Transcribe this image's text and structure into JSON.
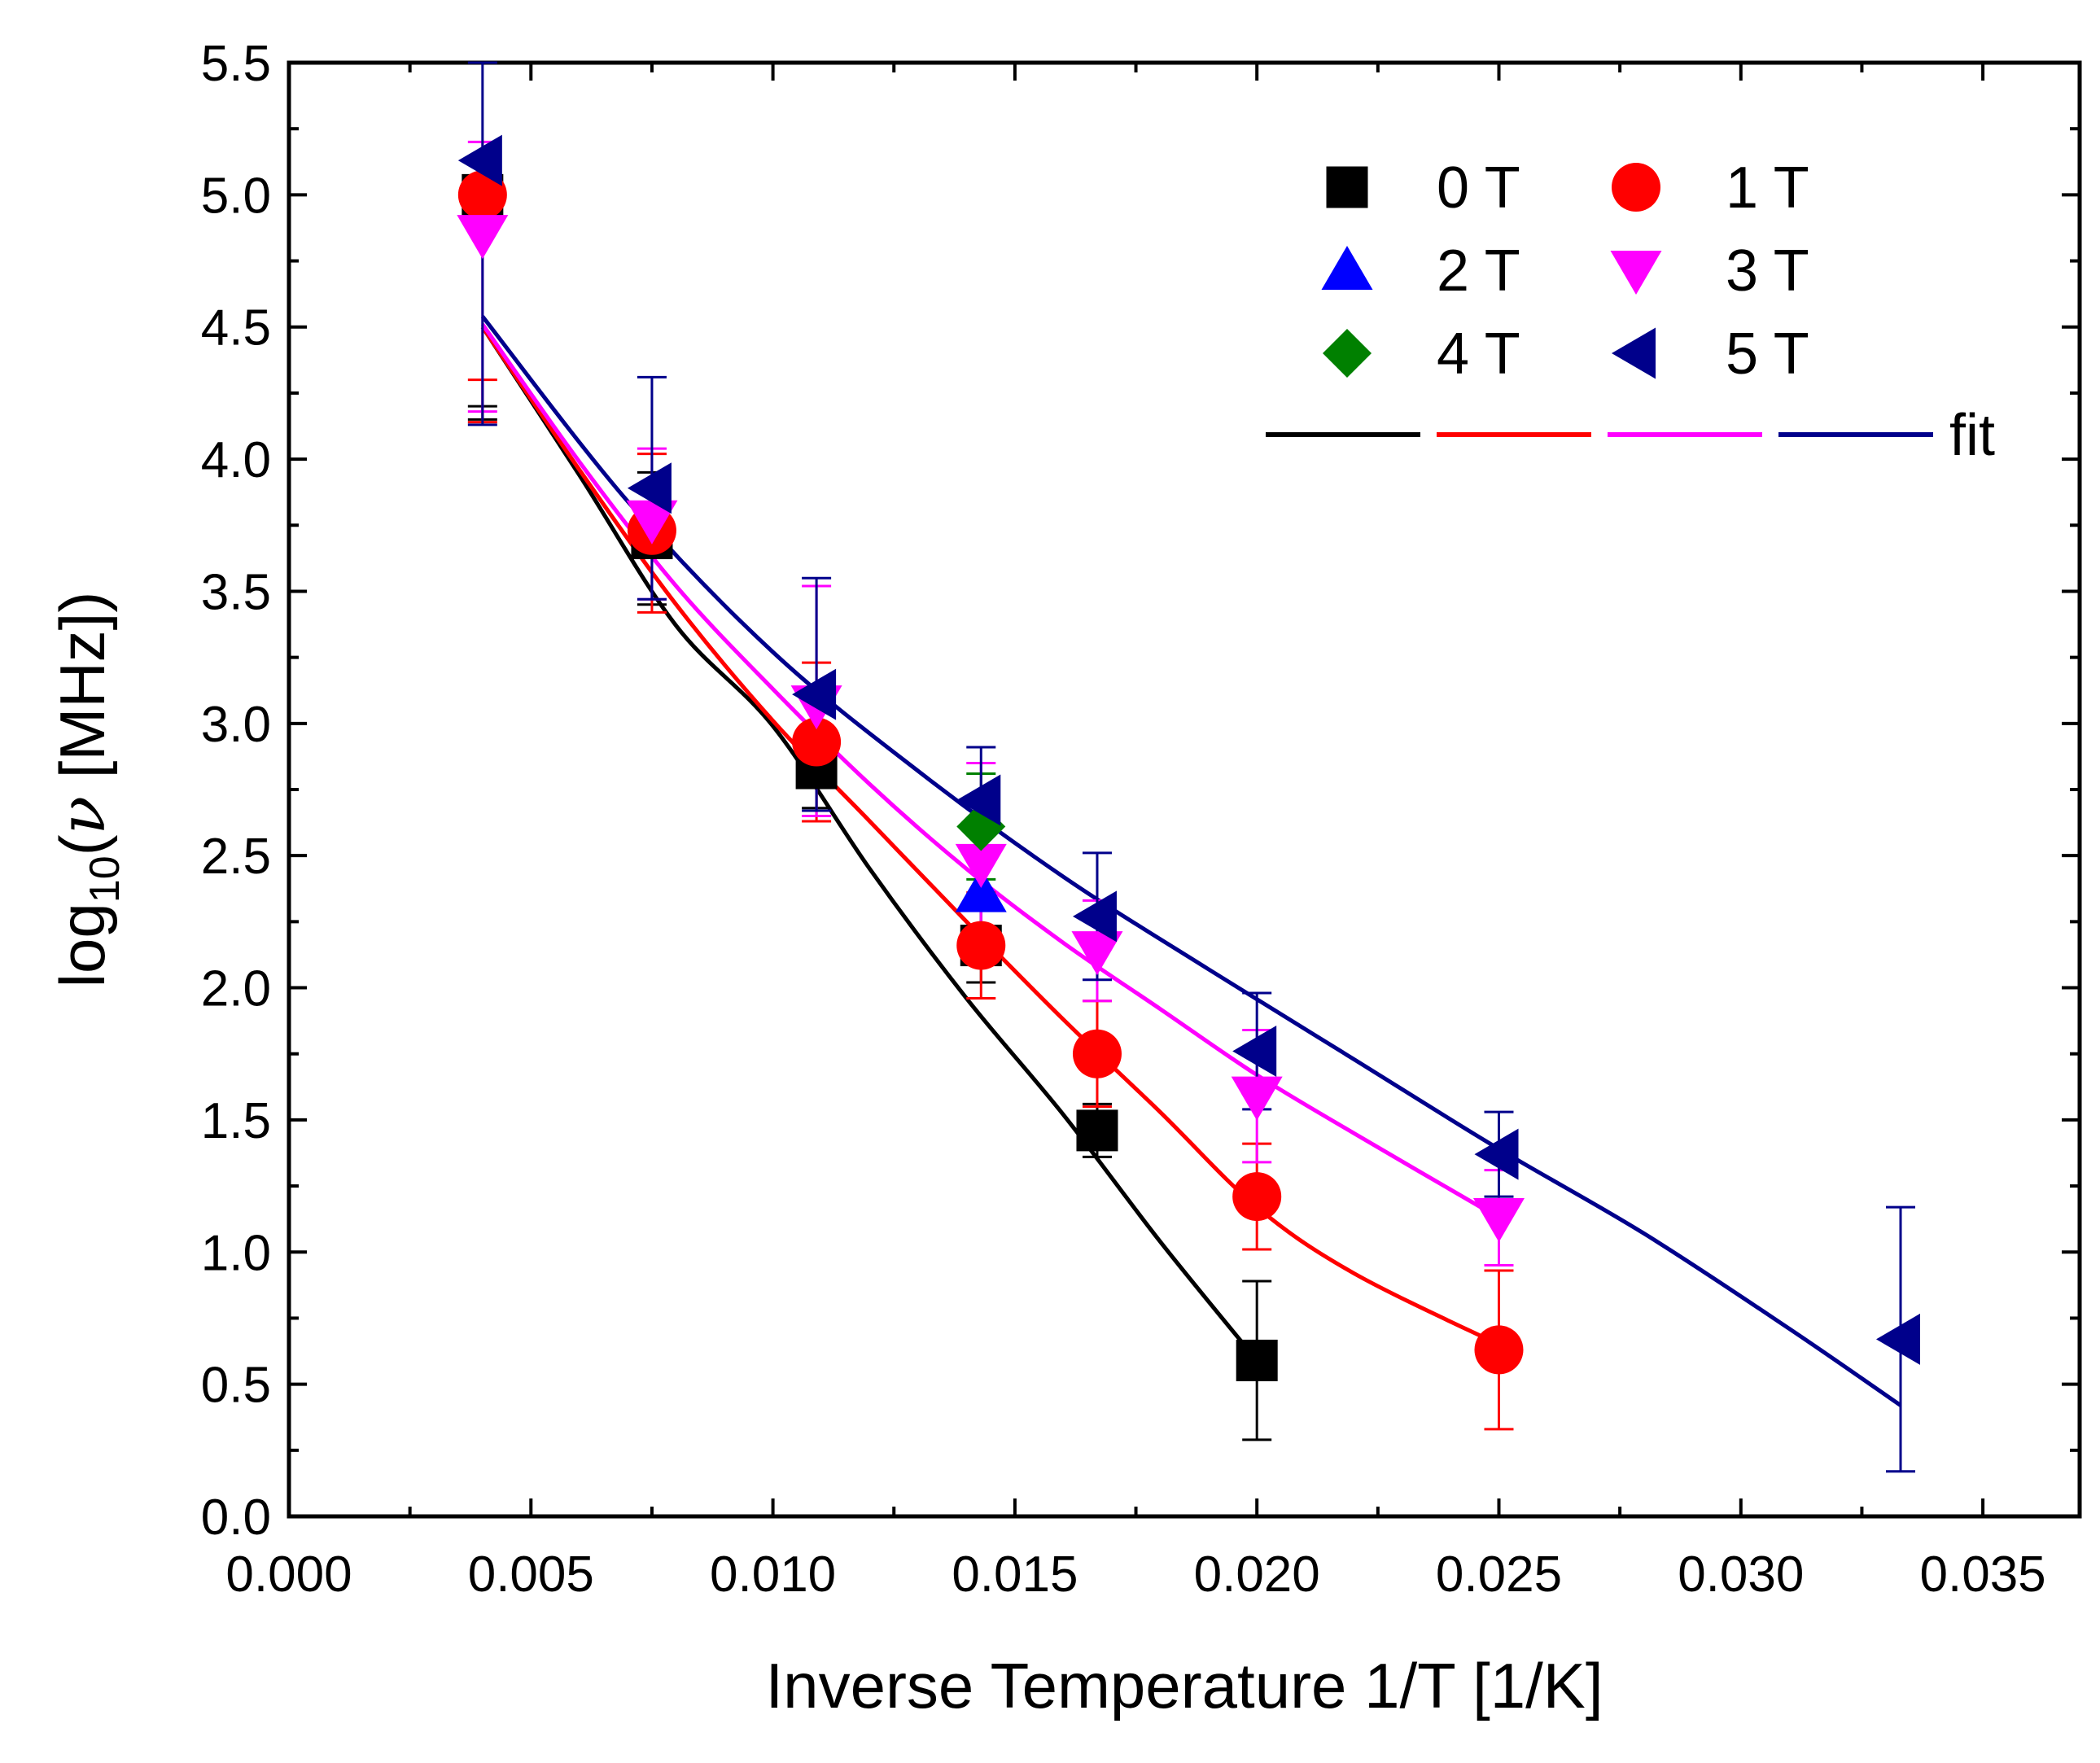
{
  "chart_data": {
    "type": "scatter",
    "xlabel": "Inverse Temperature 1/T [1/K]",
    "ylabel": {
      "prefix": "log",
      "subscript": "10",
      "open": "(",
      "symbol": "ν",
      "suffix": " [MHz])"
    },
    "xlim": [
      0.0,
      0.037
    ],
    "ylim": [
      0.0,
      5.5
    ],
    "x_ticks": [
      "0.000",
      "0.005",
      "0.010",
      "0.015",
      "0.020",
      "0.025",
      "0.030",
      "0.035"
    ],
    "y_ticks": [
      "0.0",
      "0.5",
      "1.0",
      "1.5",
      "2.0",
      "2.5",
      "3.0",
      "3.5",
      "4.0",
      "4.5",
      "5.0",
      "5.5"
    ],
    "grid": false,
    "legend_position": "top-right",
    "fit_label": "fit",
    "series": [
      {
        "name": "0 T",
        "marker": "square",
        "color": "#000000",
        "points": [
          {
            "x": 0.004,
            "y": 5.0,
            "lo": 4.15,
            "hi": 4.2
          },
          {
            "x": 0.0075,
            "y": 3.7,
            "lo": 3.45,
            "hi": 3.95
          },
          {
            "x": 0.0109,
            "y": 2.83,
            "lo": 2.68,
            "hi": 2.98
          },
          {
            "x": 0.0143,
            "y": 2.16,
            "lo": 2.02,
            "hi": 2.3
          },
          {
            "x": 0.0167,
            "y": 1.46,
            "lo": 1.36,
            "hi": 1.56
          },
          {
            "x": 0.02,
            "y": 0.59,
            "lo": 0.29,
            "hi": 0.89
          }
        ]
      },
      {
        "name": "1 T",
        "marker": "circle",
        "color": "#ff0000",
        "points": [
          {
            "x": 0.004,
            "y": 5.0,
            "lo": 4.14,
            "hi": 4.3
          },
          {
            "x": 0.0075,
            "y": 3.73,
            "lo": 3.42,
            "hi": 4.02
          },
          {
            "x": 0.0109,
            "y": 2.93,
            "lo": 2.63,
            "hi": 3.23
          },
          {
            "x": 0.0143,
            "y": 2.16,
            "lo": 1.96,
            "hi": 2.36
          },
          {
            "x": 0.0167,
            "y": 1.75,
            "lo": 1.55,
            "hi": 1.95
          },
          {
            "x": 0.02,
            "y": 1.21,
            "lo": 1.01,
            "hi": 1.41
          },
          {
            "x": 0.025,
            "y": 0.63,
            "lo": 0.33,
            "hi": 0.93
          }
        ]
      },
      {
        "name": "2 T",
        "marker": "triangle-up",
        "color": "#0000ff",
        "points": [
          {
            "x": 0.0143,
            "y": 2.36,
            "lo": 2.11,
            "hi": 2.61
          }
        ]
      },
      {
        "name": "3 T",
        "marker": "triangle-down",
        "color": "#ff00ff",
        "points": [
          {
            "x": 0.004,
            "y": 4.85,
            "lo": 4.18,
            "hi": 5.2
          },
          {
            "x": 0.0075,
            "y": 3.77,
            "lo": 3.47,
            "hi": 4.04
          },
          {
            "x": 0.0109,
            "y": 3.07,
            "lo": 2.65,
            "hi": 3.52
          },
          {
            "x": 0.0143,
            "y": 2.47,
            "lo": 2.1,
            "hi": 2.85
          },
          {
            "x": 0.0167,
            "y": 2.14,
            "lo": 1.95,
            "hi": 2.33
          },
          {
            "x": 0.02,
            "y": 1.59,
            "lo": 1.34,
            "hi": 1.84
          },
          {
            "x": 0.025,
            "y": 1.13,
            "lo": 0.95,
            "hi": 1.31
          }
        ]
      },
      {
        "name": "4 T",
        "marker": "diamond",
        "color": "#008000",
        "points": [
          {
            "x": 0.0143,
            "y": 2.61,
            "lo": 2.41,
            "hi": 2.81
          }
        ]
      },
      {
        "name": "5 T",
        "marker": "triangle-left",
        "color": "#00008b",
        "points": [
          {
            "x": 0.004,
            "y": 5.13,
            "lo": 4.13,
            "hi": 5.5
          },
          {
            "x": 0.0075,
            "y": 3.89,
            "lo": 3.47,
            "hi": 4.31
          },
          {
            "x": 0.0109,
            "y": 3.11,
            "lo": 2.67,
            "hi": 3.55
          },
          {
            "x": 0.0143,
            "y": 2.71,
            "lo": 2.51,
            "hi": 2.91
          },
          {
            "x": 0.0167,
            "y": 2.27,
            "lo": 2.03,
            "hi": 2.51
          },
          {
            "x": 0.02,
            "y": 1.76,
            "lo": 1.54,
            "hi": 1.98
          },
          {
            "x": 0.025,
            "y": 1.37,
            "lo": 1.21,
            "hi": 1.53
          },
          {
            "x": 0.0333,
            "y": 0.67,
            "lo": 0.17,
            "hi": 1.17
          }
        ]
      }
    ],
    "fits": [
      {
        "name": "0 T fit",
        "color": "#000000",
        "x": [
          0.004,
          0.006,
          0.008,
          0.01,
          0.012,
          0.014,
          0.016,
          0.018,
          0.02
        ],
        "y": [
          4.5,
          3.94,
          3.37,
          2.99,
          2.45,
          1.96,
          1.52,
          1.04,
          0.59
        ]
      },
      {
        "name": "1 T fit",
        "color": "#ff0000",
        "x": [
          0.004,
          0.006,
          0.008,
          0.01,
          0.012,
          0.014,
          0.016,
          0.018,
          0.02,
          0.022,
          0.025
        ],
        "y": [
          4.5,
          3.96,
          3.45,
          3.01,
          2.63,
          2.25,
          1.88,
          1.53,
          1.17,
          0.92,
          0.65
        ]
      },
      {
        "name": "3 T fit",
        "color": "#ff00ff",
        "x": [
          0.004,
          0.006,
          0.008,
          0.01,
          0.012,
          0.014,
          0.016,
          0.018,
          0.02,
          0.022,
          0.025
        ],
        "y": [
          4.51,
          3.99,
          3.52,
          3.13,
          2.77,
          2.45,
          2.17,
          1.92,
          1.67,
          1.45,
          1.13
        ]
      },
      {
        "name": "5 T fit",
        "color": "#00008b",
        "x": [
          0.004,
          0.007,
          0.01,
          0.013,
          0.016,
          0.019,
          0.022,
          0.025,
          0.028,
          0.031,
          0.0333
        ],
        "y": [
          4.54,
          3.84,
          3.27,
          2.82,
          2.42,
          2.07,
          1.73,
          1.39,
          1.07,
          0.71,
          0.42
        ]
      }
    ]
  }
}
